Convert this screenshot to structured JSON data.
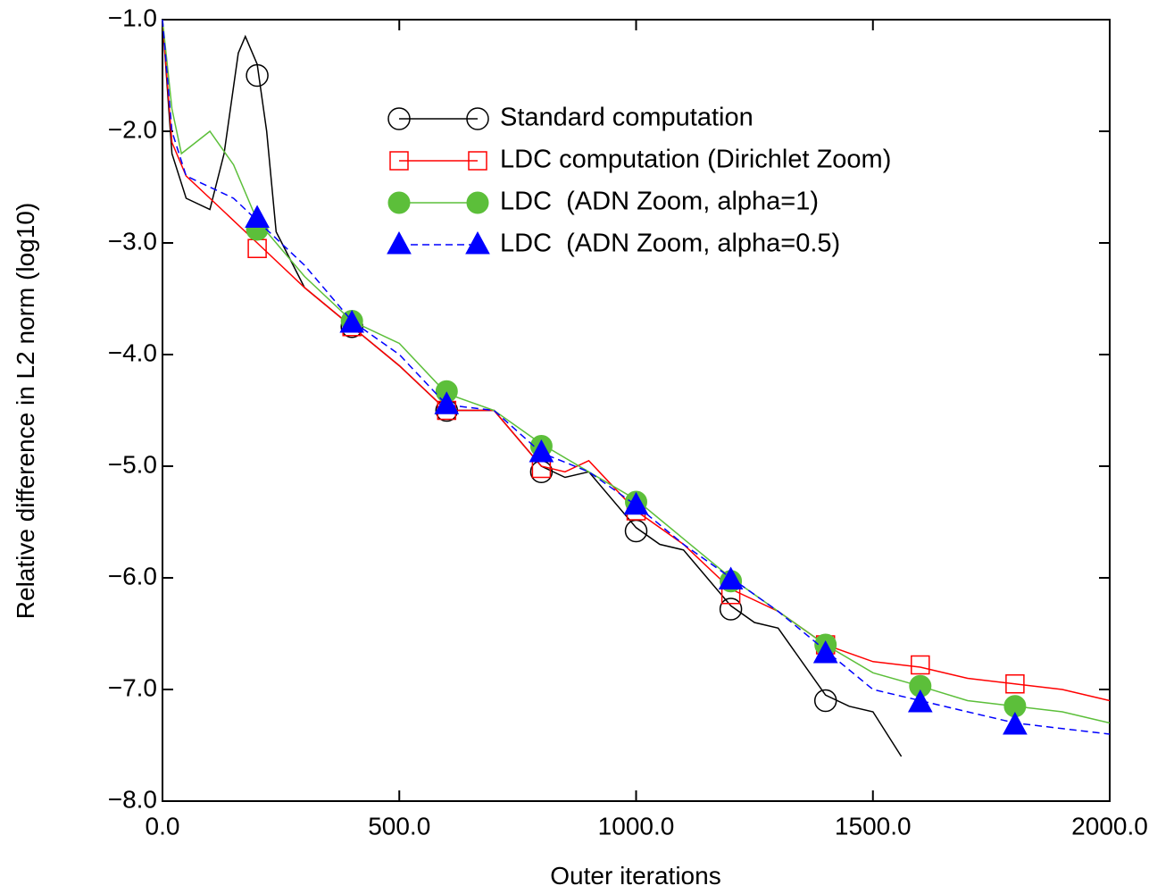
{
  "chart_data": {
    "type": "line",
    "x_label": "Outer iterations",
    "y_label": "Relative difference in L2 norm (log10)",
    "xlim": [
      0,
      2000
    ],
    "ylim": [
      -8,
      -1
    ],
    "xticks": [
      {
        "value": 0,
        "label": "0.0"
      },
      {
        "value": 500,
        "label": "500.0"
      },
      {
        "value": 1000,
        "label": "1000.0"
      },
      {
        "value": 1500,
        "label": "1500.0"
      },
      {
        "value": 2000,
        "label": "2000.0"
      }
    ],
    "yticks": [
      {
        "value": -8,
        "label": "−8.0"
      },
      {
        "value": -7,
        "label": "−7.0"
      },
      {
        "value": -6,
        "label": "−6.0"
      },
      {
        "value": -5,
        "label": "−5.0"
      },
      {
        "value": -4,
        "label": "−4.0"
      },
      {
        "value": -3,
        "label": "−3.0"
      },
      {
        "value": -2,
        "label": "−2.0"
      },
      {
        "value": -1,
        "label": "−1.0"
      }
    ],
    "legend_position": "upper right",
    "series": [
      {
        "name": "Standard computation",
        "color": "#000000",
        "marker": "open-circle",
        "dashed": false,
        "x": [
          0,
          20,
          50,
          100,
          130,
          160,
          175,
          200,
          220,
          240,
          300,
          400,
          500,
          600,
          700,
          800,
          850,
          900,
          1000,
          1050,
          1100,
          1200,
          1250,
          1300,
          1400,
          1450,
          1500,
          1560
        ],
        "values": [
          -1.0,
          -2.2,
          -2.6,
          -2.7,
          -2.2,
          -1.3,
          -1.15,
          -1.4,
          -2.0,
          -2.9,
          -3.4,
          -3.75,
          -4.1,
          -4.5,
          -4.5,
          -5.0,
          -5.1,
          -5.05,
          -5.55,
          -5.7,
          -5.75,
          -6.25,
          -6.4,
          -6.45,
          -7.05,
          -7.15,
          -7.2,
          -7.6
        ],
        "markers": {
          "x": [
            200,
            400,
            600,
            800,
            1000,
            1200,
            1400
          ],
          "values": [
            -1.5,
            -3.75,
            -4.5,
            -5.05,
            -5.58,
            -6.28,
            -7.1
          ]
        }
      },
      {
        "name": "LDC computation (Dirichlet Zoom)",
        "color": "#ff0000",
        "marker": "open-square",
        "dashed": false,
        "x": [
          0,
          20,
          50,
          100,
          200,
          300,
          400,
          500,
          600,
          700,
          800,
          850,
          900,
          1000,
          1100,
          1200,
          1300,
          1400,
          1500,
          1600,
          1700,
          1800,
          1900,
          2000
        ],
        "values": [
          -1.0,
          -2.1,
          -2.4,
          -2.6,
          -3.0,
          -3.4,
          -3.75,
          -4.1,
          -4.5,
          -4.5,
          -5.0,
          -5.05,
          -4.95,
          -5.4,
          -5.7,
          -6.1,
          -6.3,
          -6.6,
          -6.75,
          -6.8,
          -6.9,
          -6.95,
          -7.0,
          -7.1
        ],
        "markers": {
          "x": [
            200,
            400,
            600,
            800,
            1000,
            1200,
            1400,
            1600,
            1800
          ],
          "values": [
            -3.05,
            -3.75,
            -4.5,
            -5.02,
            -5.4,
            -6.15,
            -6.6,
            -6.78,
            -6.95
          ]
        }
      },
      {
        "name": "LDC  (ADN Zoom, alpha=1)",
        "color": "#5cbf3a",
        "marker": "filled-circle",
        "dashed": false,
        "x": [
          0,
          20,
          40,
          100,
          150,
          200,
          300,
          400,
          500,
          600,
          700,
          800,
          900,
          1000,
          1100,
          1200,
          1300,
          1400,
          1500,
          1600,
          1700,
          1800,
          1900,
          2000
        ],
        "values": [
          -1.0,
          -1.8,
          -2.2,
          -2.0,
          -2.3,
          -2.8,
          -3.3,
          -3.7,
          -3.9,
          -4.35,
          -4.5,
          -4.8,
          -5.05,
          -5.3,
          -5.65,
          -6.0,
          -6.3,
          -6.6,
          -6.85,
          -6.97,
          -7.1,
          -7.15,
          -7.2,
          -7.3
        ],
        "markers": {
          "x": [
            200,
            400,
            600,
            800,
            1000,
            1200,
            1400,
            1600,
            1800
          ],
          "values": [
            -2.88,
            -3.7,
            -4.33,
            -4.82,
            -5.32,
            -6.03,
            -6.6,
            -6.97,
            -7.15
          ]
        }
      },
      {
        "name": "LDC  (ADN Zoom, alpha=0.5)",
        "color": "#0000ff",
        "marker": "filled-triangle",
        "dashed": true,
        "x": [
          0,
          20,
          50,
          100,
          150,
          200,
          300,
          400,
          500,
          600,
          700,
          800,
          900,
          1000,
          1100,
          1200,
          1300,
          1400,
          1500,
          1600,
          1700,
          1800,
          1900,
          2000
        ],
        "values": [
          -1.0,
          -2.0,
          -2.4,
          -2.5,
          -2.6,
          -2.8,
          -3.2,
          -3.7,
          -4.0,
          -4.45,
          -4.5,
          -4.88,
          -5.05,
          -5.35,
          -5.7,
          -6.0,
          -6.3,
          -6.65,
          -7.0,
          -7.1,
          -7.2,
          -7.3,
          -7.35,
          -7.4
        ],
        "markers": {
          "x": [
            200,
            400,
            600,
            800,
            1000,
            1200,
            1400,
            1600,
            1800
          ],
          "values": [
            -2.78,
            -3.72,
            -4.45,
            -4.88,
            -5.35,
            -6.02,
            -6.68,
            -7.12,
            -7.32
          ]
        }
      }
    ]
  }
}
